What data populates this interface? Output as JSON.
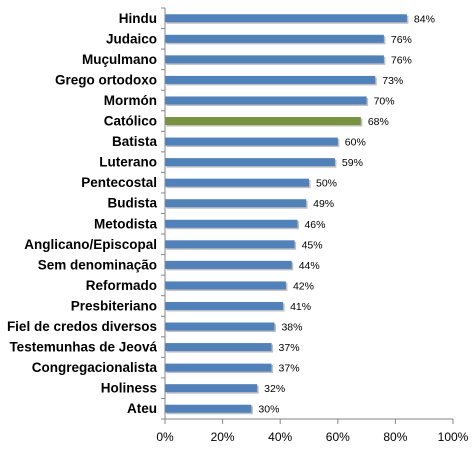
{
  "chart_data": {
    "type": "bar",
    "orientation": "horizontal",
    "categories": [
      "Hindu",
      "Judaico",
      "Muçulmano",
      "Grego ortodoxo",
      "Mormón",
      "Católico",
      "Batista",
      "Luterano",
      "Pentecostal",
      "Budista",
      "Metodista",
      "Anglicano/Episcopal",
      "Sem denominação",
      "Reformado",
      "Presbiteriano",
      "Fiel de credos diversos",
      "Testemunhas de Jeová",
      "Congregacionalista",
      "Holiness",
      "Ateu"
    ],
    "values": [
      84,
      76,
      76,
      73,
      70,
      68,
      60,
      59,
      50,
      49,
      46,
      45,
      44,
      42,
      41,
      38,
      37,
      37,
      32,
      30
    ],
    "data_labels": [
      "84%",
      "76%",
      "76%",
      "73%",
      "70%",
      "68%",
      "60%",
      "59%",
      "50%",
      "49%",
      "46%",
      "45%",
      "44%",
      "42%",
      "41%",
      "38%",
      "37%",
      "37%",
      "32%",
      "30%"
    ],
    "xlim": [
      0,
      100
    ],
    "x_ticks": [
      "0%",
      "20%",
      "40%",
      "60%",
      "80%",
      "100%"
    ],
    "title": "",
    "xlabel": "",
    "ylabel": "",
    "grid": false,
    "legend": "none",
    "colors": {
      "default_bar": "#4F81BD",
      "highlight_bar": "#77933C",
      "axis": "#868686"
    },
    "highlight_category": "Católico"
  }
}
